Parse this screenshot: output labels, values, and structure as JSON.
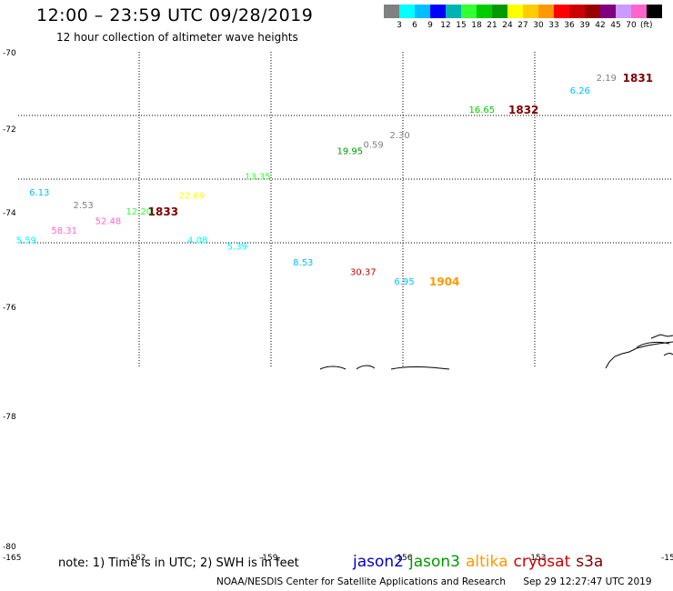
{
  "header": {
    "title": "12:00 – 23:59 UTC 09/28/2019",
    "subtitle": "12 hour collection of altimeter wave heights"
  },
  "scale": {
    "colors": [
      "#808080",
      "#00ffff",
      "#00bfff",
      "#0000ff",
      "#00b3b3",
      "#33ff33",
      "#00cc00",
      "#009900",
      "#ffff00",
      "#ffcc00",
      "#ff9900",
      "#ff0000",
      "#cc0000",
      "#990000",
      "#800080",
      "#cc99ff",
      "#ff66cc",
      "#000000"
    ],
    "labels": [
      "3",
      "6",
      "9",
      "12",
      "15",
      "18",
      "21",
      "24",
      "27",
      "30",
      "33",
      "36",
      "39",
      "42",
      "45",
      "70"
    ],
    "unit": "(ft)"
  },
  "chart_data": {
    "type": "scatter",
    "title": "12:00 – 23:59 UTC 09/28/2019",
    "subtitle": "12 hour collection of altimeter wave heights",
    "xlabel": "",
    "ylabel": "",
    "y_ticks": [
      "-70",
      "-72",
      "-74",
      "-76",
      "-78",
      "-80"
    ],
    "x_ticks": [
      "-165",
      "-162",
      "-159",
      "-156",
      "-153",
      "-150"
    ],
    "grid": true,
    "wave_heights": [
      {
        "label": "2.19",
        "lon": -151.6,
        "lat": -70.8,
        "color": "#808080"
      },
      {
        "label": "6.26",
        "lon": -152.2,
        "lat": -71.2,
        "color": "#00bfff"
      },
      {
        "label": "16.65",
        "lon": -154.5,
        "lat": -71.8,
        "color": "#00cc00"
      },
      {
        "label": "2.30",
        "lon": -156.3,
        "lat": -72.6,
        "color": "#808080"
      },
      {
        "label": "0.59",
        "lon": -156.9,
        "lat": -72.9,
        "color": "#808080"
      },
      {
        "label": "19.95",
        "lon": -157.5,
        "lat": -73.1,
        "color": "#009900"
      },
      {
        "label": "13.35",
        "lon": -159.6,
        "lat": -73.9,
        "color": "#33ff33"
      },
      {
        "label": "6.13",
        "lon": -164.5,
        "lat": -74.4,
        "color": "#00bfff"
      },
      {
        "label": "22.69",
        "lon": -161.1,
        "lat": -74.5,
        "color": "#ffff00"
      },
      {
        "label": "2.53",
        "lon": -163.5,
        "lat": -74.8,
        "color": "#808080"
      },
      {
        "label": "12.20",
        "lon": -162.3,
        "lat": -75.0,
        "color": "#33ff33"
      },
      {
        "label": "52.48",
        "lon": -163.0,
        "lat": -75.3,
        "color": "#ff66cc"
      },
      {
        "label": "58.31",
        "lon": -164.0,
        "lat": -75.6,
        "color": "#ff66cc"
      },
      {
        "label": "5.59",
        "lon": -164.8,
        "lat": -75.9,
        "color": "#00ffff"
      },
      {
        "label": "4.08",
        "lon": -160.9,
        "lat": -75.9,
        "color": "#00ffff"
      },
      {
        "label": "5.39",
        "lon": -160.0,
        "lat": -76.1,
        "color": "#00ffff"
      },
      {
        "label": "8.53",
        "lon": -158.5,
        "lat": -76.6,
        "color": "#00bfff"
      },
      {
        "label": "30.37",
        "lon": -157.2,
        "lat": -76.9,
        "color": "#cc0000"
      },
      {
        "label": "6.95",
        "lon": -156.2,
        "lat": -77.2,
        "color": "#00bfff"
      }
    ],
    "pass_times": [
      {
        "label": "1831",
        "lon": -151.0,
        "lat": -70.8,
        "color": "#800000"
      },
      {
        "label": "1832",
        "lon": -153.6,
        "lat": -71.8,
        "color": "#800000"
      },
      {
        "label": "1833",
        "lon": -161.8,
        "lat": -75.0,
        "color": "#800000"
      },
      {
        "label": "1904",
        "lon": -155.4,
        "lat": -77.2,
        "color": "#ff9900"
      }
    ]
  },
  "legend": {
    "satellites": [
      {
        "name": "jason2",
        "color": "#0000cc"
      },
      {
        "name": "jason3",
        "color": "#009900"
      },
      {
        "name": "altika",
        "color": "#ff9900"
      },
      {
        "name": "cryosat",
        "color": "#cc0000"
      },
      {
        "name": "s3a",
        "color": "#800000"
      }
    ]
  },
  "note": "note: 1) Time is in UTC; 2) SWH is in feet",
  "footer": {
    "credit": "NOAA/NESDIS Center for Satellite Applications and Research",
    "timestamp": "Sep 29 12:27:47 UTC 2019"
  }
}
